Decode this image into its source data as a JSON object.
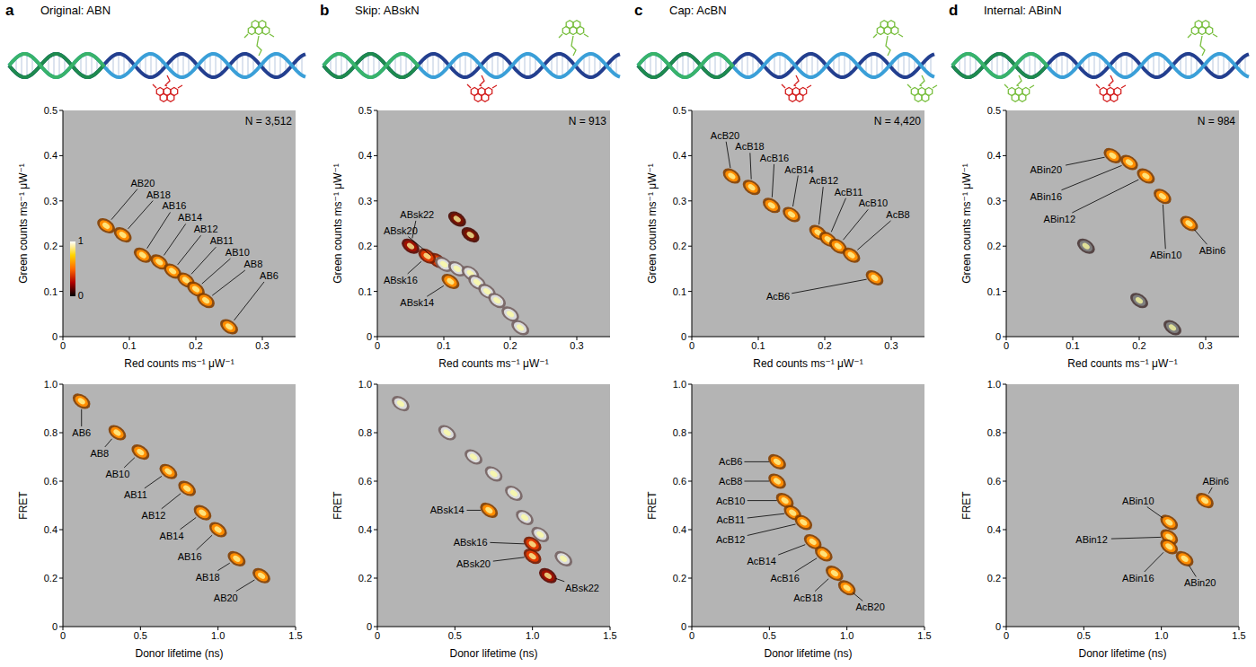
{
  "chart_data": [
    {
      "type": "scatter",
      "panel": "a",
      "title": "Original: ABN",
      "annotation": "N = 3,512",
      "x_label": "Red counts ms⁻¹ μW⁻¹",
      "y_label": "Green counts ms⁻¹ μW⁻¹",
      "xlim": [
        0,
        0.35
      ],
      "xticks": [
        0,
        0.1,
        0.2,
        0.3
      ],
      "ylim": [
        0,
        0.5
      ],
      "yticks": [
        0,
        0.1,
        0.2,
        0.3,
        0.4,
        0.5
      ],
      "grid": false,
      "x": [
        0.065,
        0.09,
        0.12,
        0.145,
        0.165,
        0.185,
        0.2,
        0.215,
        0.25
      ],
      "values": [
        0.245,
        0.225,
        0.18,
        0.165,
        0.145,
        0.125,
        0.105,
        0.08,
        0.022
      ],
      "labels": [
        "AB20",
        "AB18",
        "AB16",
        "AB14",
        "AB12",
        "AB11",
        "AB10",
        "AB8",
        "AB6"
      ],
      "colors": [
        "#ff8c00",
        "#ff8c00",
        "#ff8c00",
        "#ff8c00",
        "#ff8c00",
        "#ff8c00",
        "#ff8c00",
        "#ff8c00",
        "#ff8c00"
      ],
      "colorbar": {
        "range": [
          0,
          1
        ],
        "ticks": [
          0,
          1
        ]
      }
    },
    {
      "type": "scatter",
      "x_label": "Donor lifetime (ns)",
      "y_label": "FRET",
      "xlim": [
        0,
        1.5
      ],
      "xticks": [
        0,
        0.5,
        {
          "value": 1,
          "label": "1.0"
        },
        1.5
      ],
      "ylim": [
        0,
        1
      ],
      "yticks": [
        0,
        0.2,
        0.4,
        0.6,
        0.8,
        {
          "value": 1,
          "label": "1.0"
        }
      ],
      "grid": false,
      "x": [
        0.12,
        0.35,
        0.5,
        0.68,
        0.8,
        0.9,
        1.0,
        1.12,
        1.28
      ],
      "values": [
        0.93,
        0.8,
        0.72,
        0.64,
        0.57,
        0.47,
        0.4,
        0.28,
        0.21
      ],
      "labels": [
        "AB6",
        "AB8",
        "AB10",
        "AB11",
        "AB12",
        "AB14",
        "AB16",
        "AB18",
        "AB20"
      ],
      "colors": [
        "#ff8c00",
        "#ff8c00",
        "#ff8c00",
        "#ff8c00",
        "#ff8c00",
        "#ff8c00",
        "#ff8c00",
        "#ff8c00",
        "#ff8c00"
      ]
    },
    {
      "type": "scatter",
      "panel": "b",
      "title": "Skip: ABskN",
      "annotation": "N = 913",
      "x_label": "Red counts ms⁻¹ μW⁻¹",
      "y_label": "Green counts ms⁻¹ μW⁻¹",
      "xlim": [
        0,
        0.35
      ],
      "xticks": [
        0,
        0.1,
        0.2,
        0.3
      ],
      "ylim": [
        0,
        0.5
      ],
      "yticks": [
        0,
        0.1,
        0.2,
        0.3,
        0.4,
        0.5
      ],
      "grid": false,
      "x": [
        0.05,
        0.09,
        0.075,
        0.11,
        0.1,
        0.12,
        0.14,
        0.15,
        0.165,
        0.18,
        0.2,
        0.215,
        0.12,
        0.14
      ],
      "values": [
        0.2,
        0.168,
        0.178,
        0.122,
        0.16,
        0.15,
        0.14,
        0.12,
        0.1,
        0.08,
        0.05,
        0.02,
        0.26,
        0.225
      ],
      "labels": [
        "ABsk22",
        "ABsk20",
        "ABsk16",
        "ABsk14",
        null,
        null,
        null,
        null,
        null,
        null,
        null,
        null,
        null,
        null
      ],
      "colors": [
        "#a01000",
        "#e03a00",
        "#e03a00",
        "#ff8c00",
        "#dcdcdc",
        "#dcdcdc",
        "#dcdcdc",
        "#dcdcdc",
        "#dcdcdc",
        "#dcdcdc",
        "#dcdcdc",
        "#dcdcdc",
        "#7a1200",
        "#7a1200"
      ]
    },
    {
      "type": "scatter",
      "x_label": "Donor lifetime (ns)",
      "y_label": "FRET",
      "xlim": [
        0,
        1.5
      ],
      "xticks": [
        0,
        0.5,
        {
          "value": 1,
          "label": "1.0"
        },
        1.5
      ],
      "ylim": [
        0,
        1
      ],
      "yticks": [
        0,
        0.2,
        0.4,
        0.6,
        0.8,
        {
          "value": 1,
          "label": "1.0"
        }
      ],
      "grid": false,
      "x": [
        1.1,
        1.0,
        1.0,
        0.72,
        0.15,
        0.45,
        0.62,
        0.75,
        0.88,
        0.95,
        1.05,
        1.2
      ],
      "values": [
        0.21,
        0.29,
        0.34,
        0.48,
        0.92,
        0.8,
        0.7,
        0.63,
        0.55,
        0.45,
        0.38,
        0.28
      ],
      "labels": [
        "ABsk22",
        "ABsk20",
        "ABsk16",
        "ABsk14",
        null,
        null,
        null,
        null,
        null,
        null,
        null,
        null
      ],
      "colors": [
        "#a01000",
        "#e03a00",
        "#e03a00",
        "#ff8c00",
        "#dcdcdc",
        "#dcdcdc",
        "#dcdcdc",
        "#dcdcdc",
        "#dcdcdc",
        "#dcdcdc",
        "#dcdcdc",
        "#dcdcdc"
      ]
    },
    {
      "type": "scatter",
      "panel": "c",
      "title": "Cap: AcBN",
      "annotation": "N = 4,420",
      "x_label": "Red counts ms⁻¹ μW⁻¹",
      "y_label": "Green counts ms⁻¹ μW⁻¹",
      "xlim": [
        0,
        0.35
      ],
      "xticks": [
        0,
        0.1,
        0.2,
        0.3
      ],
      "ylim": [
        0,
        0.5
      ],
      "yticks": [
        0,
        0.1,
        0.2,
        0.3,
        0.4,
        0.5
      ],
      "grid": false,
      "x": [
        0.06,
        0.09,
        0.12,
        0.15,
        0.19,
        0.205,
        0.22,
        0.24,
        0.275
      ],
      "values": [
        0.355,
        0.33,
        0.29,
        0.27,
        0.23,
        0.215,
        0.2,
        0.18,
        0.13
      ],
      "labels": [
        "AcB20",
        "AcB18",
        "AcB16",
        "AcB14",
        "AcB12",
        "AcB11",
        "AcB10",
        "AcB8",
        "AcB6"
      ],
      "colors": [
        "#ff8c00",
        "#ff8c00",
        "#ff8c00",
        "#ff8c00",
        "#ff8c00",
        "#ff8c00",
        "#ff8c00",
        "#ff8c00",
        "#ff8c00"
      ]
    },
    {
      "type": "scatter",
      "x_label": "Donor lifetime (ns)",
      "y_label": "FRET",
      "xlim": [
        0,
        1.5
      ],
      "xticks": [
        0,
        0.5,
        {
          "value": 1,
          "label": "1.0"
        },
        1.5
      ],
      "ylim": [
        0,
        1
      ],
      "yticks": [
        0,
        0.2,
        0.4,
        0.6,
        0.8,
        {
          "value": 1,
          "label": "1.0"
        }
      ],
      "grid": false,
      "x": [
        0.55,
        0.55,
        0.6,
        0.65,
        0.72,
        0.78,
        0.85,
        0.92,
        1.0
      ],
      "values": [
        0.68,
        0.6,
        0.52,
        0.47,
        0.43,
        0.35,
        0.3,
        0.22,
        0.16
      ],
      "labels": [
        "AcB6",
        "AcB8",
        "AcB10",
        "AcB11",
        "AcB12",
        "AcB14",
        "AcB16",
        "AcB18",
        "AcB20"
      ],
      "colors": [
        "#ff8c00",
        "#ff8c00",
        "#ff8c00",
        "#ff8c00",
        "#ff8c00",
        "#ff8c00",
        "#ff8c00",
        "#ff8c00",
        "#ff8c00"
      ]
    },
    {
      "type": "scatter",
      "panel": "d",
      "title": "Internal: ABinN",
      "annotation": "N = 984",
      "x_label": "Red counts ms⁻¹ μW⁻¹",
      "y_label": "Green counts ms⁻¹ μW⁻¹",
      "xlim": [
        0,
        0.35
      ],
      "xticks": [
        0,
        0.1,
        0.2,
        0.3
      ],
      "ylim": [
        0,
        0.5
      ],
      "yticks": [
        0,
        0.1,
        0.2,
        0.3,
        0.4,
        0.5
      ],
      "grid": false,
      "x": [
        0.16,
        0.185,
        0.21,
        0.235,
        0.275,
        0.12,
        0.2,
        0.25
      ],
      "values": [
        0.4,
        0.385,
        0.355,
        0.31,
        0.25,
        0.2,
        0.08,
        0.02
      ],
      "labels": [
        "ABin20",
        "ABin16",
        "ABin12",
        "ABin10",
        "ABin6",
        null,
        null,
        null
      ],
      "colors": [
        "#ff8c00",
        "#ff8c00",
        "#ff8c00",
        "#ff8c00",
        "#ff8c00",
        "#7f7f7f",
        "#7f7f7f",
        "#7f7f7f"
      ]
    },
    {
      "type": "scatter",
      "x_label": "Donor lifetime (ns)",
      "y_label": "FRET",
      "xlim": [
        0,
        1.5
      ],
      "xticks": [
        0,
        0.5,
        {
          "value": 1,
          "label": "1.0"
        },
        1.5
      ],
      "ylim": [
        0,
        1
      ],
      "yticks": [
        0,
        0.2,
        0.4,
        0.6,
        0.8,
        {
          "value": 1,
          "label": "1.0"
        }
      ],
      "grid": false,
      "x": [
        1.28,
        1.05,
        1.05,
        1.05,
        1.15
      ],
      "values": [
        0.52,
        0.43,
        0.37,
        0.33,
        0.28
      ],
      "labels": [
        "ABin6",
        "ABin10",
        "ABin12",
        "ABin16",
        "ABin20"
      ],
      "colors": [
        "#ff8c00",
        "#ff8c00",
        "#ff8c00",
        "#ff8c00",
        "#ff8c00"
      ]
    }
  ]
}
